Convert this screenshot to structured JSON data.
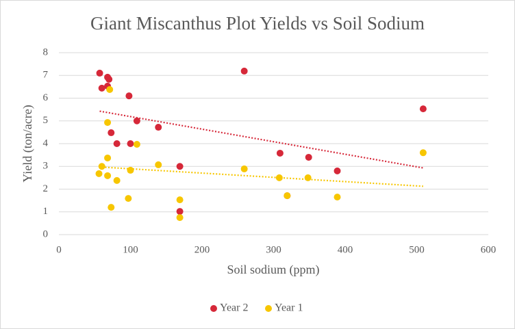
{
  "chart_data": {
    "type": "scatter",
    "title": "Giant Miscanthus Plot Yields vs Soil Sodium",
    "x_label": "Soil sodium (ppm)",
    "y_label": "Yield (ton/acre)",
    "xlim": [
      0,
      600
    ],
    "xticks": [
      0,
      100,
      200,
      300,
      400,
      500,
      600
    ],
    "ylim": [
      0,
      8
    ],
    "yticks": [
      0,
      1,
      2,
      3,
      4,
      5,
      6,
      7,
      8
    ],
    "grid": true,
    "legend": "bottom",
    "trendline": "linear",
    "series": [
      {
        "name": "Year 2",
        "color": "#d62839",
        "x": [
          57,
          60,
          68,
          70,
          68,
          98,
          73,
          81,
          100,
          109,
          139,
          169,
          169,
          259,
          309,
          349,
          389,
          319,
          509
        ],
        "values": [
          7.1,
          6.44,
          6.92,
          6.83,
          6.53,
          6.1,
          4.48,
          4.0,
          4.0,
          5.0,
          4.72,
          3.0,
          1.02,
          7.19,
          3.58,
          3.4,
          2.8,
          1.71,
          5.53
        ]
      },
      {
        "name": "Year 1",
        "color": "#f7c600",
        "x": [
          71,
          68,
          109,
          139,
          60,
          56,
          68,
          68,
          81,
          100,
          97,
          73,
          169,
          169,
          259,
          308,
          348,
          389,
          319,
          509
        ],
        "values": [
          6.38,
          4.93,
          3.97,
          3.07,
          3.0,
          2.68,
          3.37,
          2.59,
          2.38,
          2.83,
          1.59,
          1.2,
          1.53,
          0.75,
          2.89,
          2.5,
          2.5,
          1.65,
          1.71,
          3.6
        ]
      }
    ]
  }
}
